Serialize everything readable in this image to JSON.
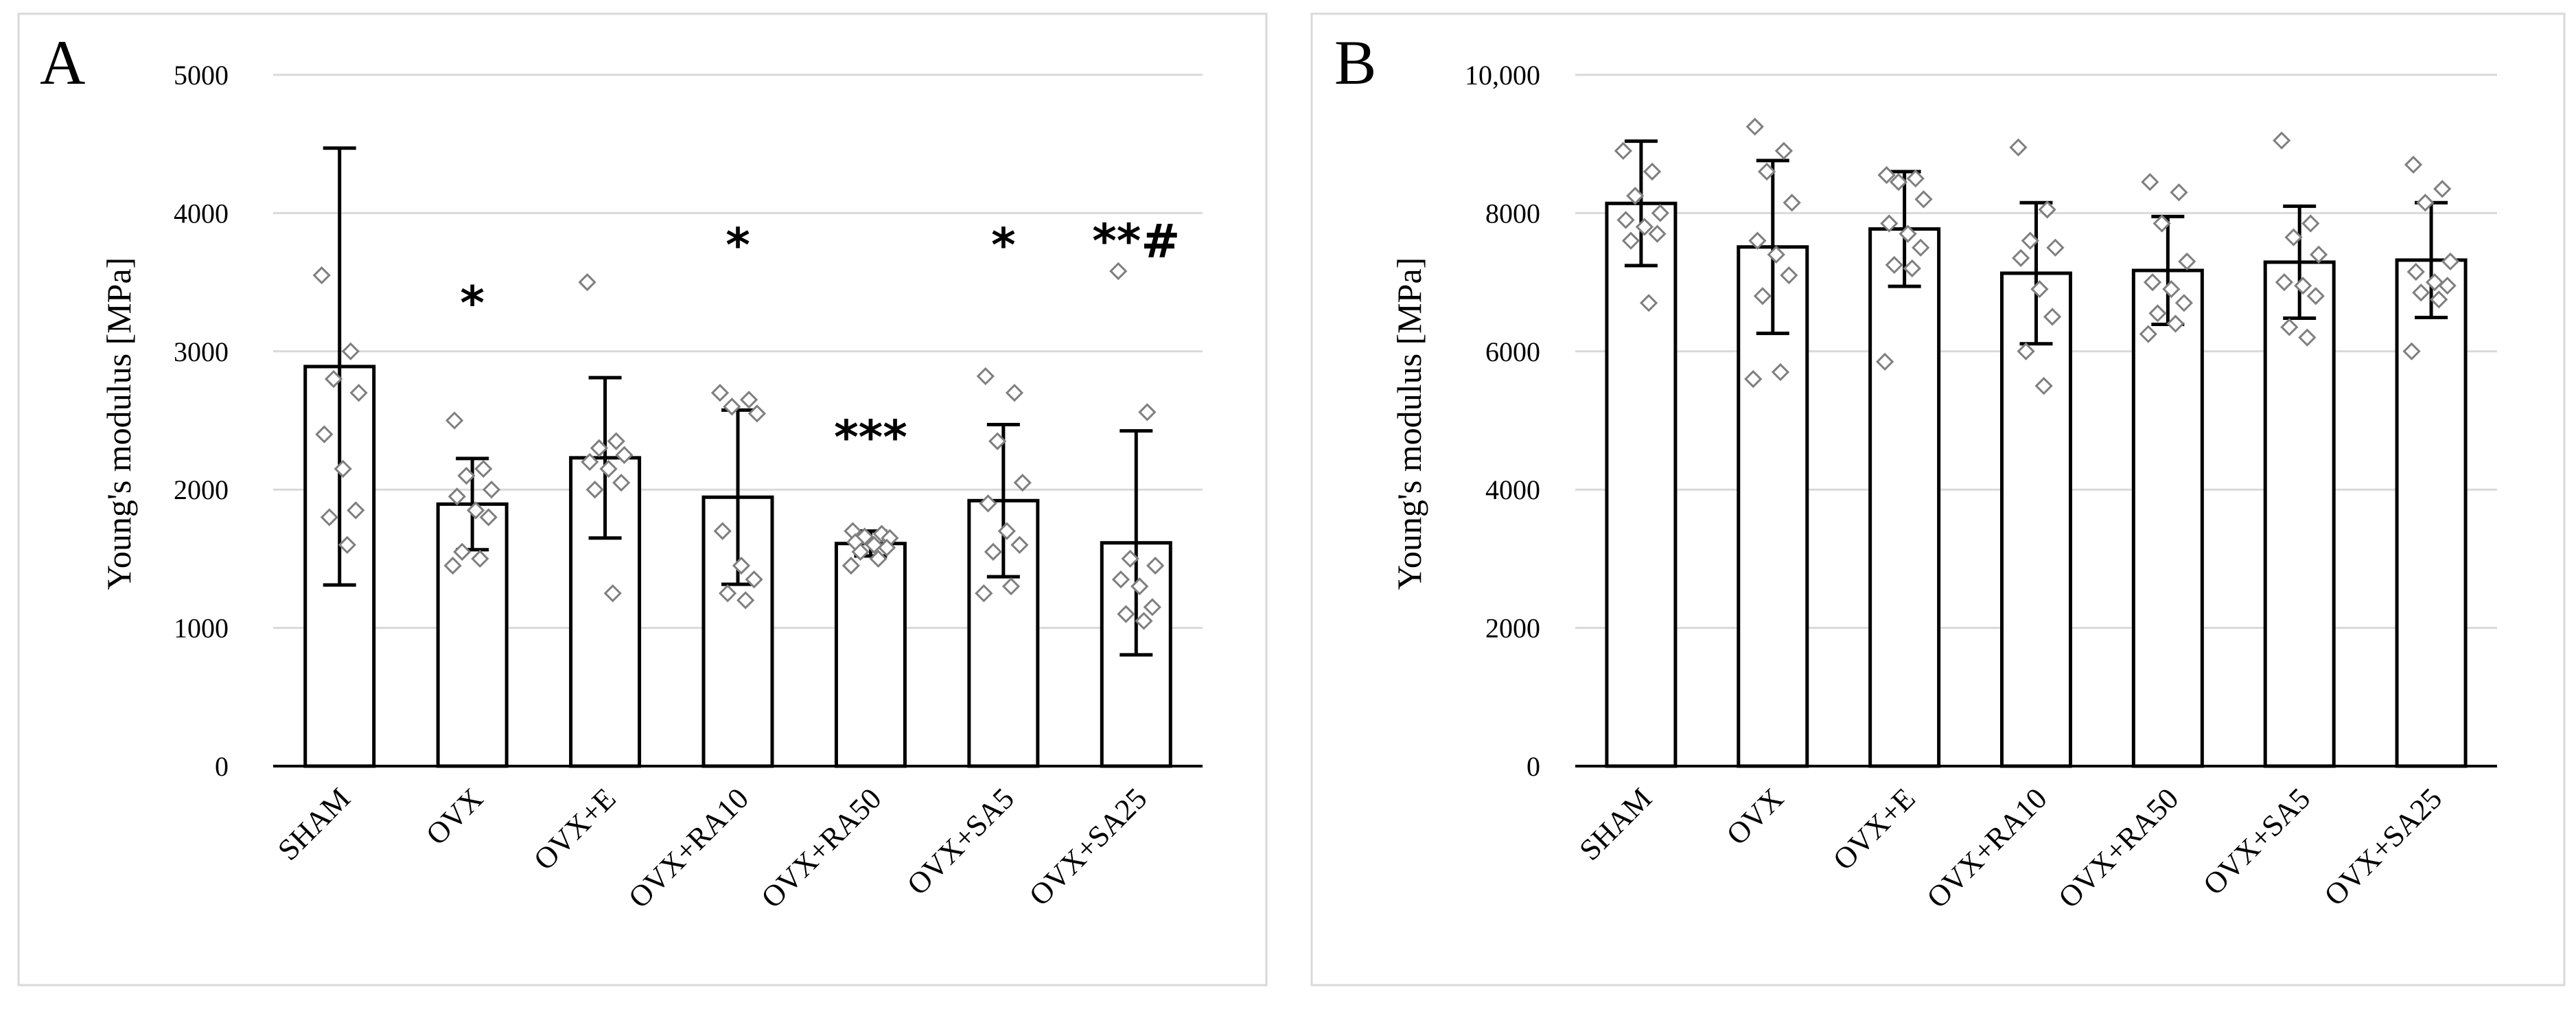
{
  "figure": {
    "panels": [
      "A",
      "B"
    ]
  },
  "chart_data": [
    {
      "panel_label": "A",
      "type": "bar",
      "title": "",
      "xlabel": "",
      "ylabel": "Young's modulus [MPa]",
      "ylim": [
        0,
        5000
      ],
      "yticks": [
        0,
        1000,
        2000,
        3000,
        4000,
        5000
      ],
      "ytick_labels": [
        "0",
        "1000",
        "2000",
        "3000",
        "4000",
        "5000"
      ],
      "grid": true,
      "categories": [
        "SHAM",
        "OVX",
        "OVX+E",
        "OVX+RA10",
        "OVX+RA50",
        "OVX+SA5",
        "OVX+SA25"
      ],
      "values": [
        2890,
        1895,
        2230,
        1945,
        1610,
        1920,
        1615
      ],
      "error_bars": [
        1580,
        330,
        580,
        630,
        90,
        550,
        810
      ],
      "significance": [
        "",
        "*",
        "",
        "*",
        "***",
        "*",
        "**#"
      ],
      "significance_y": [
        null,
        3400,
        null,
        3820,
        2430,
        3820,
        3850
      ],
      "points": [
        [
          3550,
          3000,
          2800,
          2700,
          2400,
          2150,
          1850,
          1800,
          1600
        ],
        [
          2500,
          2150,
          2100,
          2000,
          1950,
          1850,
          1800,
          1550,
          1500,
          1450
        ],
        [
          3500,
          2350,
          2300,
          2250,
          2200,
          2150,
          2050,
          2000,
          1250
        ],
        [
          2700,
          2650,
          2600,
          2550,
          1700,
          1450,
          1350,
          1250,
          1200
        ],
        [
          1700,
          1680,
          1660,
          1650,
          1620,
          1600,
          1580,
          1550,
          1500,
          1450
        ],
        [
          2820,
          2700,
          2350,
          2050,
          1900,
          1700,
          1600,
          1550,
          1300,
          1250
        ],
        [
          3580,
          2560,
          1500,
          1450,
          1350,
          1300,
          1150,
          1100,
          1050
        ]
      ]
    },
    {
      "panel_label": "B",
      "type": "bar",
      "title": "",
      "xlabel": "",
      "ylabel": "Young's modulus [MPa]",
      "ylim": [
        0,
        10000
      ],
      "yticks": [
        0,
        2000,
        4000,
        6000,
        8000,
        10000
      ],
      "ytick_labels": [
        "0",
        "2000",
        "4000",
        "6000",
        "8000",
        "10,000"
      ],
      "grid": true,
      "categories": [
        "SHAM",
        "OVX",
        "OVX+E",
        "OVX+RA10",
        "OVX+RA50",
        "OVX+SA5",
        "OVX+SA25"
      ],
      "values": [
        8140,
        7510,
        7770,
        7130,
        7170,
        7290,
        7320
      ],
      "error_bars": [
        900,
        1250,
        830,
        1020,
        780,
        810,
        830
      ],
      "significance": [
        "",
        "",
        "",
        "",
        "",
        "",
        ""
      ],
      "significance_y": [
        null,
        null,
        null,
        null,
        null,
        null,
        null
      ],
      "points": [
        [
          8900,
          8600,
          8250,
          8000,
          7900,
          7800,
          7700,
          7600,
          6700
        ],
        [
          9250,
          8900,
          8600,
          8150,
          7600,
          7400,
          7100,
          6800,
          5700,
          5600
        ],
        [
          8550,
          8500,
          8450,
          8200,
          7850,
          7700,
          7500,
          7250,
          7200,
          5850
        ],
        [
          8950,
          8050,
          7600,
          7500,
          7350,
          6900,
          6500,
          6000,
          5500
        ],
        [
          8450,
          8300,
          7850,
          7300,
          7000,
          6900,
          6700,
          6550,
          6400,
          6250
        ],
        [
          9050,
          7850,
          7650,
          7400,
          7000,
          6950,
          6800,
          6350,
          6200
        ],
        [
          8700,
          8350,
          8150,
          7300,
          7150,
          7000,
          6950,
          6850,
          6750,
          6000
        ]
      ]
    }
  ]
}
